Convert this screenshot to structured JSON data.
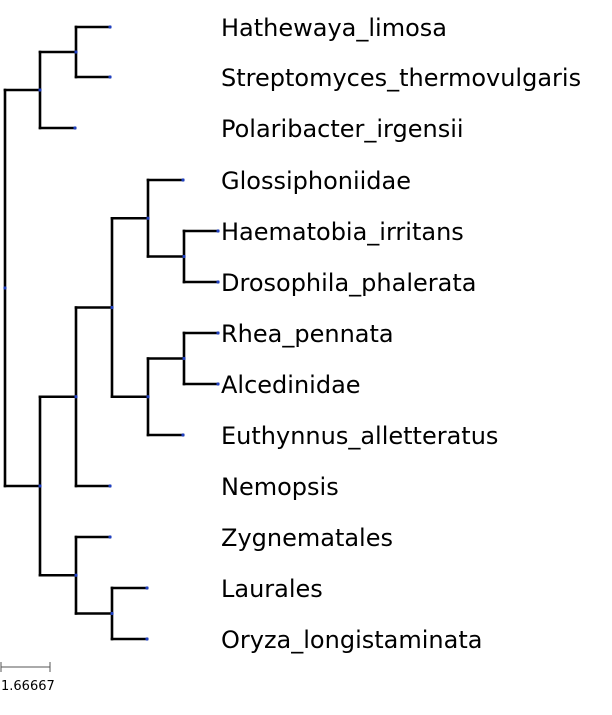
{
  "tree": {
    "branch_color": "#000000",
    "node_color": "#1f3fbf",
    "leaves": [
      "Hathewaya_limosa",
      "Streptomyces_thermovulgaris",
      "Polaribacter_irgensii",
      "Glossiphoniidae",
      "Haematobia_irritans",
      "Drosophila_phalerata",
      "Rhea_pennata",
      "Alcedinidae",
      "Euthynnus_alletteratus",
      "Nemopsis",
      "Zygnematales",
      "Laurales",
      "Oryza_longistaminata"
    ],
    "scale_bar_label": "1.66667"
  }
}
